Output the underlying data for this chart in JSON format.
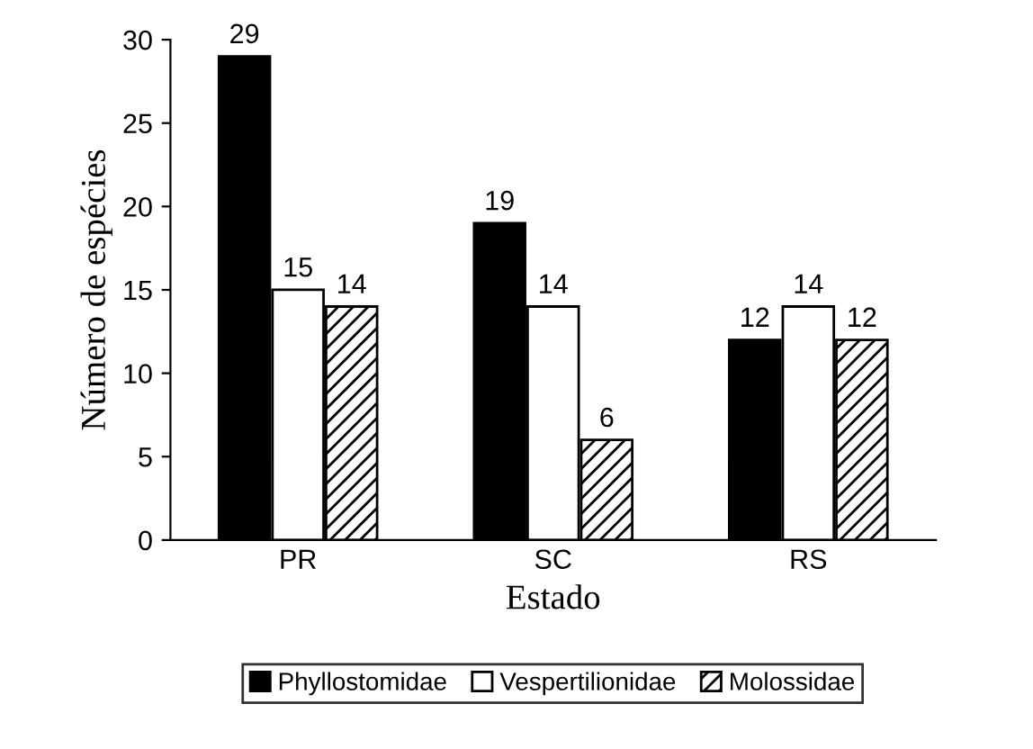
{
  "chart_data": {
    "type": "bar",
    "xlabel": "Estado",
    "ylabel": "Número de espécies",
    "categories": [
      "PR",
      "SC",
      "RS"
    ],
    "series": [
      {
        "name": "Phyllostomidae",
        "color": "#000000",
        "values": [
          29,
          19,
          12
        ]
      },
      {
        "name": "Vespertilionidae",
        "color": "#ffffff",
        "values": [
          15,
          14,
          14
        ]
      },
      {
        "name": "Molossidae",
        "color": "#000000",
        "values": [
          14,
          6,
          12
        ]
      }
    ],
    "ylim": [
      0,
      30
    ],
    "yticks": [
      0,
      5,
      10,
      15,
      20,
      25,
      30
    ],
    "grid": false,
    "legend": "bottom",
    "data_labels": true
  }
}
